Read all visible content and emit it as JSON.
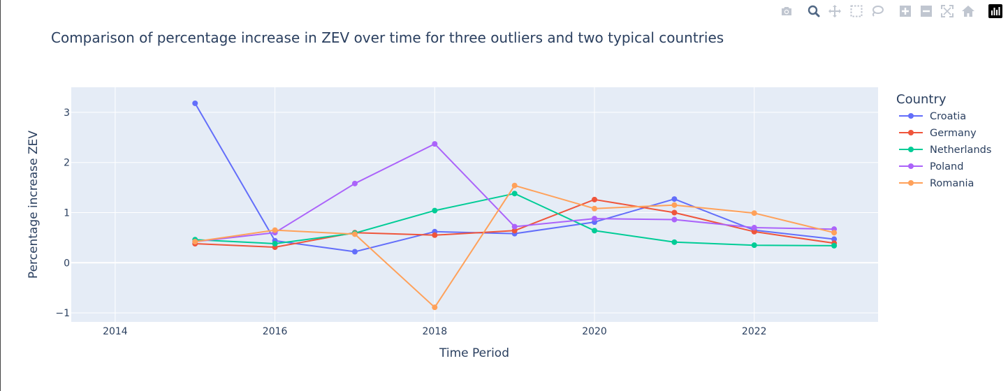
{
  "chart_data": {
    "type": "line",
    "title": "Comparison of percentage increase in ZEV over time for three outliers and two typical countries",
    "xlabel": "Time Period",
    "ylabel": "Percentage increase ZEV",
    "xlim": [
      2013.45,
      2023.55
    ],
    "ylim": [
      -1.18,
      3.5
    ],
    "x_ticks": [
      2014,
      2016,
      2018,
      2020,
      2022
    ],
    "y_ticks": [
      -1,
      0,
      1,
      2,
      3
    ],
    "y_tick_labels": [
      "−1",
      "0",
      "1",
      "2",
      "3"
    ],
    "grid": true,
    "legend_title": "Country",
    "legend_position": "right",
    "x": [
      2015,
      2016,
      2017,
      2018,
      2019,
      2020,
      2021,
      2022,
      2023
    ],
    "series": [
      {
        "name": "Croatia",
        "color": "#636efa",
        "values": [
          3.18,
          0.44,
          0.22,
          0.62,
          0.58,
          0.81,
          1.27,
          0.65,
          0.47
        ]
      },
      {
        "name": "Germany",
        "color": "#ef553b",
        "values": [
          0.38,
          0.31,
          0.6,
          0.55,
          0.64,
          1.26,
          1.0,
          0.62,
          0.39
        ]
      },
      {
        "name": "Netherlands",
        "color": "#00cc96",
        "values": [
          0.46,
          0.38,
          0.59,
          1.04,
          1.38,
          0.64,
          0.41,
          0.35,
          0.34
        ]
      },
      {
        "name": "Poland",
        "color": "#ab63fa",
        "values": [
          0.42,
          0.6,
          1.58,
          2.37,
          0.72,
          0.88,
          0.86,
          0.7,
          0.67
        ]
      },
      {
        "name": "Romania",
        "color": "#ffa15a",
        "values": [
          0.42,
          0.65,
          0.57,
          -0.89,
          1.54,
          1.08,
          1.15,
          0.99,
          0.6
        ]
      }
    ]
  },
  "modebar": {
    "icons": [
      "camera-icon",
      "zoom-icon",
      "pan-icon",
      "box-select-icon",
      "lasso-select-icon",
      "zoom-in-icon",
      "zoom-out-icon",
      "autoscale-icon",
      "reset-axes-icon",
      "plotly-logo-icon"
    ]
  }
}
